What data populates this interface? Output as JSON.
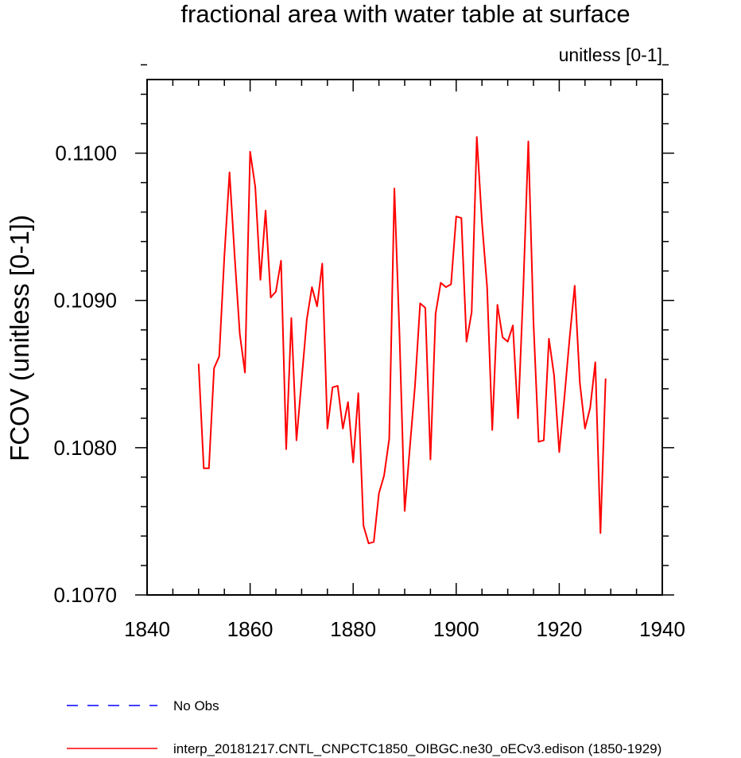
{
  "chart_data": {
    "type": "line",
    "title": "fractional area with water table at surface",
    "units_label": "unitless [0-1]",
    "ylabel": "FCOV  (unitless [0-1])",
    "xlabel": "",
    "xlim": [
      1840,
      1940
    ],
    "ylim": [
      0.107,
      0.1105
    ],
    "x_ticks": [
      1840,
      1860,
      1880,
      1900,
      1920,
      1940
    ],
    "x_tick_labels": [
      "1840",
      "1860",
      "1880",
      "1900",
      "1920",
      "1940"
    ],
    "y_ticks": [
      0.107,
      0.108,
      0.109,
      0.11
    ],
    "y_tick_labels": [
      "0.1070",
      "0.1080",
      "0.1090",
      "0.1100"
    ],
    "grid": false,
    "legend_position": "bottom",
    "series": [
      {
        "name": "No Obs",
        "color": "#0000ff",
        "style": "dashed",
        "x": [],
        "values": []
      },
      {
        "name": "interp_20181217.CNTL_CNPCTC1850_OIBGC.ne30_oECv3.edison (1850-1929)",
        "color": "#ff0000",
        "style": "solid",
        "x": [
          1850,
          1851,
          1852,
          1853,
          1854,
          1855,
          1856,
          1857,
          1858,
          1859,
          1860,
          1861,
          1862,
          1863,
          1864,
          1865,
          1866,
          1867,
          1868,
          1869,
          1870,
          1871,
          1872,
          1873,
          1874,
          1875,
          1876,
          1877,
          1878,
          1879,
          1880,
          1881,
          1882,
          1883,
          1884,
          1885,
          1886,
          1887,
          1888,
          1889,
          1890,
          1891,
          1892,
          1893,
          1894,
          1895,
          1896,
          1897,
          1898,
          1899,
          1900,
          1901,
          1902,
          1903,
          1904,
          1905,
          1906,
          1907,
          1908,
          1909,
          1910,
          1911,
          1912,
          1913,
          1914,
          1915,
          1916,
          1917,
          1918,
          1919,
          1920,
          1921,
          1922,
          1923,
          1924,
          1925,
          1926,
          1927,
          1928,
          1929
        ],
        "values": [
          0.10857,
          0.10786,
          0.10786,
          0.10854,
          0.10862,
          0.1093,
          0.10987,
          0.1093,
          0.10877,
          0.10851,
          0.11001,
          0.10977,
          0.10914,
          0.10961,
          0.10902,
          0.10906,
          0.10927,
          0.10799,
          0.10888,
          0.10805,
          0.10846,
          0.10887,
          0.10909,
          0.10896,
          0.10925,
          0.10813,
          0.10841,
          0.10842,
          0.10813,
          0.10831,
          0.1079,
          0.10837,
          0.10747,
          0.10735,
          0.10736,
          0.10769,
          0.10781,
          0.10806,
          0.10976,
          0.10876,
          0.10757,
          0.108,
          0.10842,
          0.10898,
          0.10895,
          0.10792,
          0.10891,
          0.10912,
          0.10909,
          0.10911,
          0.10957,
          0.10956,
          0.10872,
          0.10892,
          0.11011,
          0.10953,
          0.10909,
          0.10812,
          0.10897,
          0.10875,
          0.10872,
          0.10883,
          0.1082,
          0.10906,
          0.11008,
          0.10885,
          0.10804,
          0.10805,
          0.10874,
          0.10849,
          0.10797,
          0.10834,
          0.10874,
          0.1091,
          0.10844,
          0.10813,
          0.10827,
          0.10858,
          0.10742,
          0.10847
        ]
      }
    ]
  }
}
